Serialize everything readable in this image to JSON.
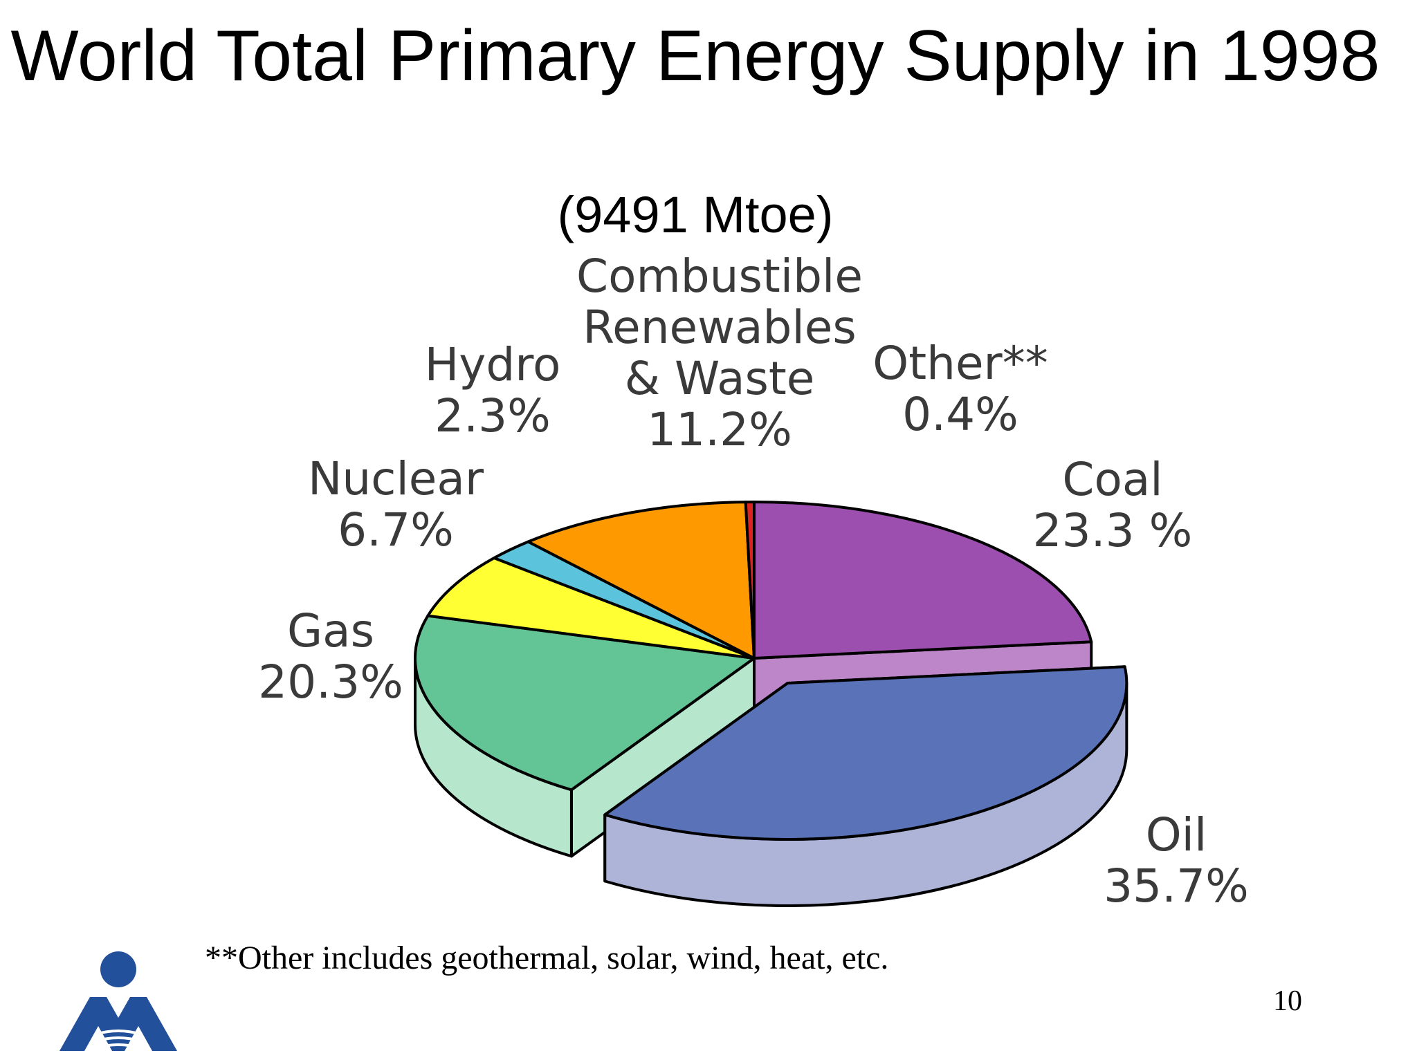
{
  "slide": {
    "title": "World Total Primary Energy Supply in 1998",
    "subtitle": "(9491 Mtoe)",
    "footnote": "**Other includes geothermal, solar, wind, heat, etc.",
    "page_number": "10"
  },
  "chart_data": {
    "type": "pie",
    "title": "World Total Primary Energy Supply in 1998",
    "subtitle": "(9491 Mtoe)",
    "slices": [
      {
        "name": "Coal",
        "value": 23.3,
        "label_lines": [
          "Coal",
          "23.3 %"
        ],
        "color": "#9c4fae",
        "side_color": "#bd86c8"
      },
      {
        "name": "Oil",
        "value": 35.7,
        "label_lines": [
          "Oil",
          "35.7%"
        ],
        "color": "#5a72b7",
        "side_color": "#adb4d8",
        "exploded": true
      },
      {
        "name": "Gas",
        "value": 20.3,
        "label_lines": [
          "Gas",
          "20.3%"
        ],
        "color": "#63c496",
        "side_color": "#b6e6cc"
      },
      {
        "name": "Nuclear",
        "value": 6.7,
        "label_lines": [
          "Nuclear",
          "6.7%"
        ],
        "color": "#ffff33",
        "side_color": "#ffff99"
      },
      {
        "name": "Hydro",
        "value": 2.3,
        "label_lines": [
          "Hydro",
          "2.3%"
        ],
        "color": "#5bc4dc",
        "side_color": "#a8e0ee"
      },
      {
        "name": "Combustible Renewables & Waste",
        "value": 11.2,
        "label_lines": [
          "Combustible",
          "Renewables",
          "& Waste",
          "11.2%"
        ],
        "color": "#ff9900",
        "side_color": "#ffc266"
      },
      {
        "name": "Other**",
        "value": 0.4,
        "label_lines": [
          "Other**",
          "0.4%"
        ],
        "color": "#dd2222",
        "side_color": "#ee8888"
      }
    ],
    "legend": "none"
  }
}
